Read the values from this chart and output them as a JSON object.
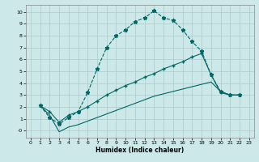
{
  "xlabel": "Humidex (Indice chaleur)",
  "bg_color": "#cce8e8",
  "grid_color": "#aacccc",
  "line_color": "#006666",
  "xlim": [
    -0.5,
    23.5
  ],
  "ylim": [
    -0.6,
    10.6
  ],
  "xticks": [
    0,
    1,
    2,
    3,
    4,
    5,
    6,
    7,
    8,
    9,
    10,
    11,
    12,
    13,
    14,
    15,
    16,
    17,
    18,
    19,
    20,
    21,
    22,
    23
  ],
  "yticks": [
    0,
    1,
    2,
    3,
    4,
    5,
    6,
    7,
    8,
    9,
    10
  ],
  "ytick_labels": [
    "-0",
    "1",
    "2",
    "3",
    "4",
    "5",
    "6",
    "7",
    "8",
    "9",
    "10"
  ],
  "curve1_x": [
    1,
    2,
    3,
    4,
    5,
    6,
    7,
    8,
    9,
    10,
    11,
    12,
    13,
    14,
    15,
    16,
    17,
    18,
    19,
    20,
    21,
    22
  ],
  "curve1_y": [
    2.1,
    1.1,
    0.55,
    1.1,
    1.6,
    3.2,
    5.2,
    7.0,
    8.0,
    8.5,
    9.2,
    9.5,
    10.1,
    9.5,
    9.3,
    8.5,
    7.5,
    6.7,
    4.7,
    3.3,
    3.0,
    3.0
  ],
  "curve2_x": [
    1,
    2,
    3,
    4,
    5,
    6,
    7,
    8,
    9,
    10,
    11,
    12,
    13,
    14,
    15,
    16,
    17,
    18,
    19,
    20,
    21,
    22
  ],
  "curve2_y": [
    2.1,
    1.6,
    0.7,
    1.3,
    1.6,
    2.0,
    2.5,
    3.0,
    3.4,
    3.8,
    4.1,
    4.5,
    4.8,
    5.2,
    5.5,
    5.8,
    6.2,
    6.5,
    4.7,
    3.2,
    3.0,
    3.0
  ],
  "curve3_x": [
    1,
    2,
    3,
    4,
    5,
    6,
    7,
    8,
    9,
    10,
    11,
    12,
    13,
    14,
    15,
    16,
    17,
    18,
    19,
    20,
    21,
    22
  ],
  "curve3_y": [
    2.1,
    1.3,
    -0.1,
    0.3,
    0.5,
    0.8,
    1.1,
    1.4,
    1.7,
    2.0,
    2.3,
    2.6,
    2.9,
    3.1,
    3.3,
    3.5,
    3.7,
    3.9,
    4.1,
    3.3,
    3.0,
    3.0
  ]
}
